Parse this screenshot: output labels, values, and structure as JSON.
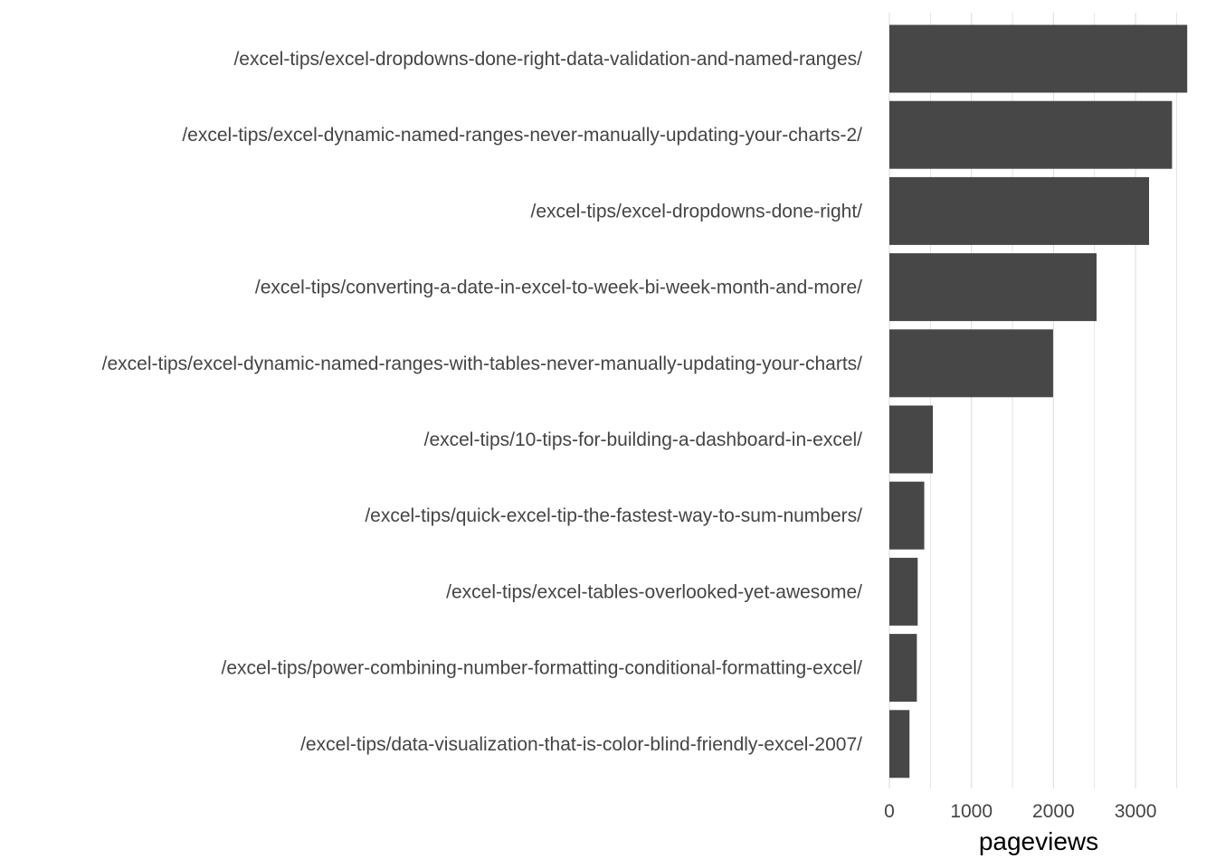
{
  "chart_data": {
    "type": "bar",
    "orientation": "horizontal",
    "categories": [
      "/excel-tips/excel-dropdowns-done-right-data-validation-and-named-ranges/",
      "/excel-tips/excel-dynamic-named-ranges-never-manually-updating-your-charts-2/",
      "/excel-tips/excel-dropdowns-done-right/",
      "/excel-tips/converting-a-date-in-excel-to-week-bi-week-month-and-more/",
      "/excel-tips/excel-dynamic-named-ranges-with-tables-never-manually-updating-your-charts/",
      "/excel-tips/10-tips-for-building-a-dashboard-in-excel/",
      "/excel-tips/quick-excel-tip-the-fastest-way-to-sum-numbers/",
      "/excel-tips/excel-tables-overlooked-yet-awesome/",
      "/excel-tips/power-combining-number-formatting-conditional-formatting-excel/",
      "/excel-tips/data-visualization-that-is-color-blind-friendly-excel-2007/"
    ],
    "values": [
      3630,
      3445,
      3165,
      2525,
      1995,
      530,
      425,
      345,
      335,
      245
    ],
    "xlabel": "pageviews",
    "ylabel": "",
    "title": "",
    "xlim": [
      0,
      3650
    ],
    "xticks": [
      0,
      1000,
      2000,
      3000
    ],
    "grid": "vertical",
    "bar_color": "#474747",
    "grid_color": "#dedede",
    "label_color": "#444444"
  }
}
